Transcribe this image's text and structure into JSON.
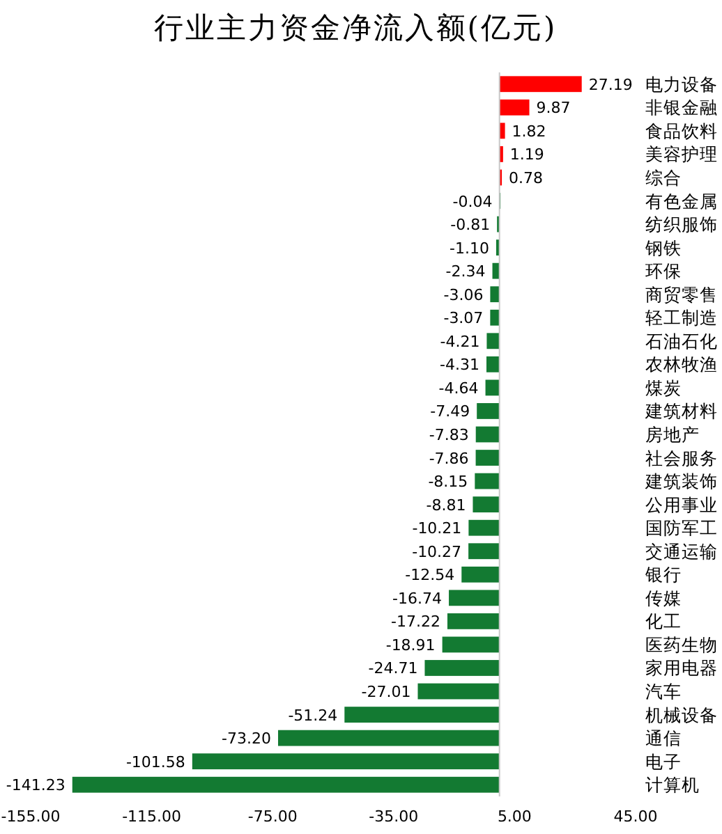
{
  "chart_data": {
    "type": "bar",
    "orientation": "horizontal",
    "title": "行业主力资金净流入额(亿元)",
    "categories": [
      "电力设备",
      "非银金融",
      "食品饮料",
      "美容护理",
      "综合",
      "有色金属",
      "纺织服饰",
      "钢铁",
      "环保",
      "商贸零售",
      "轻工制造",
      "石油石化",
      "农林牧渔",
      "煤炭",
      "建筑材料",
      "房地产",
      "社会服务",
      "建筑装饰",
      "公用事业",
      "国防军工",
      "交通运输",
      "银行",
      "传媒",
      "化工",
      "医药生物",
      "家用电器",
      "汽车",
      "机械设备",
      "通信",
      "电子",
      "计算机"
    ],
    "values": [
      27.19,
      9.87,
      1.82,
      1.19,
      0.78,
      -0.04,
      -0.81,
      -1.1,
      -2.34,
      -3.06,
      -3.07,
      -4.21,
      -4.31,
      -4.64,
      -7.49,
      -7.83,
      -7.86,
      -8.15,
      -8.81,
      -10.21,
      -10.27,
      -12.54,
      -16.74,
      -17.22,
      -18.91,
      -24.71,
      -27.01,
      -51.24,
      -73.2,
      -101.58,
      -141.23
    ],
    "value_labels": [
      "27.19",
      "9.87",
      "1.82",
      "1.19",
      "0.78",
      "-0.04",
      "-0.81",
      "-1.10",
      "-2.34",
      "-3.06",
      "-3.07",
      "-4.21",
      "-4.31",
      "-4.64",
      "-7.49",
      "-7.83",
      "-7.86",
      "-8.15",
      "-8.81",
      "-10.21",
      "-10.27",
      "-12.54",
      "-16.74",
      "-17.22",
      "-18.91",
      "-24.71",
      "-27.01",
      "-51.24",
      "-73.20",
      "-101.58",
      "-141.23"
    ],
    "colors": [
      "#ff0000",
      "#ff0000",
      "#ff0000",
      "#ff0000",
      "#ff0000",
      "#137a32",
      "#137a32",
      "#137a32",
      "#137a32",
      "#137a32",
      "#137a32",
      "#137a32",
      "#137a32",
      "#137a32",
      "#137a32",
      "#137a32",
      "#137a32",
      "#137a32",
      "#137a32",
      "#137a32",
      "#137a32",
      "#137a32",
      "#137a32",
      "#137a32",
      "#137a32",
      "#137a32",
      "#137a32",
      "#137a32",
      "#137a32",
      "#137a32",
      "#137a32"
    ],
    "xlim": [
      -155,
      45
    ],
    "xticks": [
      {
        "value": -155,
        "label": "-155.00"
      },
      {
        "value": -115,
        "label": "-115.00"
      },
      {
        "value": -75,
        "label": "-75.00"
      },
      {
        "value": -35,
        "label": "-35.00"
      },
      {
        "value": 5,
        "label": "5.00"
      },
      {
        "value": 45,
        "label": "45.00"
      }
    ]
  }
}
